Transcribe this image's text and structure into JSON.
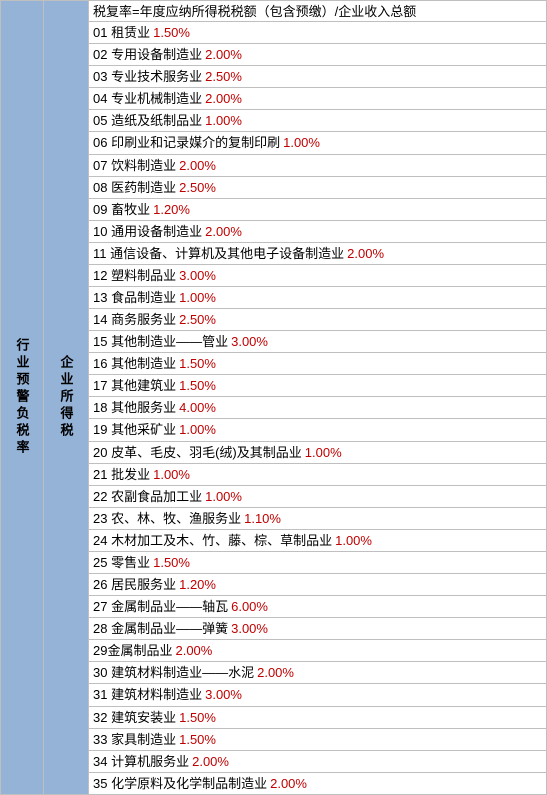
{
  "left_header": "行业预警负税率",
  "mid_header": "企业所得税",
  "formula": "税复率=年度应纳所得税税额（包含预缴）/企业收入总额",
  "colors": {
    "header_bg": "#95b3d7",
    "rate_color": "#c00000",
    "border_color": "#bfbfbf",
    "text_color": "#000000"
  },
  "rows": [
    {
      "num": "01",
      "label": "租赁业",
      "rate": "1.50%"
    },
    {
      "num": "02",
      "label": "专用设备制造业",
      "rate": "2.00%"
    },
    {
      "num": "03",
      "label": "专业技术服务业",
      "rate": "2.50%"
    },
    {
      "num": "04",
      "label": "专业机械制造业",
      "rate": "2.00%"
    },
    {
      "num": "05",
      "label": "造纸及纸制品业",
      "rate": "1.00%"
    },
    {
      "num": "06",
      "label": "印刷业和记录媒介的复制印刷",
      "rate": "1.00%"
    },
    {
      "num": "07",
      "label": "饮料制造业",
      "rate": "2.00%"
    },
    {
      "num": "08",
      "label": "医药制造业",
      "rate": "2.50%"
    },
    {
      "num": "09",
      "label": "畜牧业",
      "rate": "1.20%"
    },
    {
      "num": "10",
      "label": "通用设备制造业",
      "rate": "2.00%"
    },
    {
      "num": "11",
      "label": "通信设备、计算机及其他电子设备制造业",
      "rate": "2.00%"
    },
    {
      "num": "12",
      "label": "塑料制品业",
      "rate": "3.00%"
    },
    {
      "num": "13",
      "label": "食品制造业",
      "rate": "1.00%"
    },
    {
      "num": "14",
      "label": "商务服务业",
      "rate": "2.50%"
    },
    {
      "num": "15",
      "label": "其他制造业——管业",
      "rate": "3.00%"
    },
    {
      "num": "16",
      "label": "其他制造业",
      "rate": "1.50%"
    },
    {
      "num": "17",
      "label": "其他建筑业",
      "rate": "1.50%"
    },
    {
      "num": "18",
      "label": "其他服务业",
      "rate": "4.00%"
    },
    {
      "num": "19",
      "label": "其他采矿业",
      "rate": "1.00%"
    },
    {
      "num": "20",
      "label": "皮革、毛皮、羽毛(绒)及其制品业",
      "rate": "1.00%"
    },
    {
      "num": "21",
      "label": "批发业",
      "rate": "1.00%"
    },
    {
      "num": "22",
      "label": "农副食品加工业",
      "rate": "1.00%"
    },
    {
      "num": "23",
      "label": "农、林、牧、渔服务业",
      "rate": "1.10%"
    },
    {
      "num": "24",
      "label": "木材加工及木、竹、藤、棕、草制品业",
      "rate": "1.00%"
    },
    {
      "num": "25",
      "label": "零售业",
      "rate": "1.50%"
    },
    {
      "num": "26",
      "label": "居民服务业",
      "rate": "1.20%"
    },
    {
      "num": "27",
      "label": "金属制品业——轴瓦",
      "rate": "6.00%"
    },
    {
      "num": "28",
      "label": "金属制品业——弹簧",
      "rate": "3.00%"
    },
    {
      "num": "29",
      "label": "金属制品业",
      "rate": "2.00%",
      "nospace": true
    },
    {
      "num": "30",
      "label": "建筑材料制造业——水泥",
      "rate": "2.00%"
    },
    {
      "num": "31",
      "label": "建筑材料制造业",
      "rate": "3.00%"
    },
    {
      "num": "32",
      "label": "建筑安装业",
      "rate": "1.50%"
    },
    {
      "num": "33",
      "label": "家具制造业",
      "rate": "1.50%"
    },
    {
      "num": "34",
      "label": "计算机服务业",
      "rate": "2.00%"
    },
    {
      "num": "35",
      "label": "化学原料及化学制品制造业",
      "rate": "2.00%"
    }
  ]
}
